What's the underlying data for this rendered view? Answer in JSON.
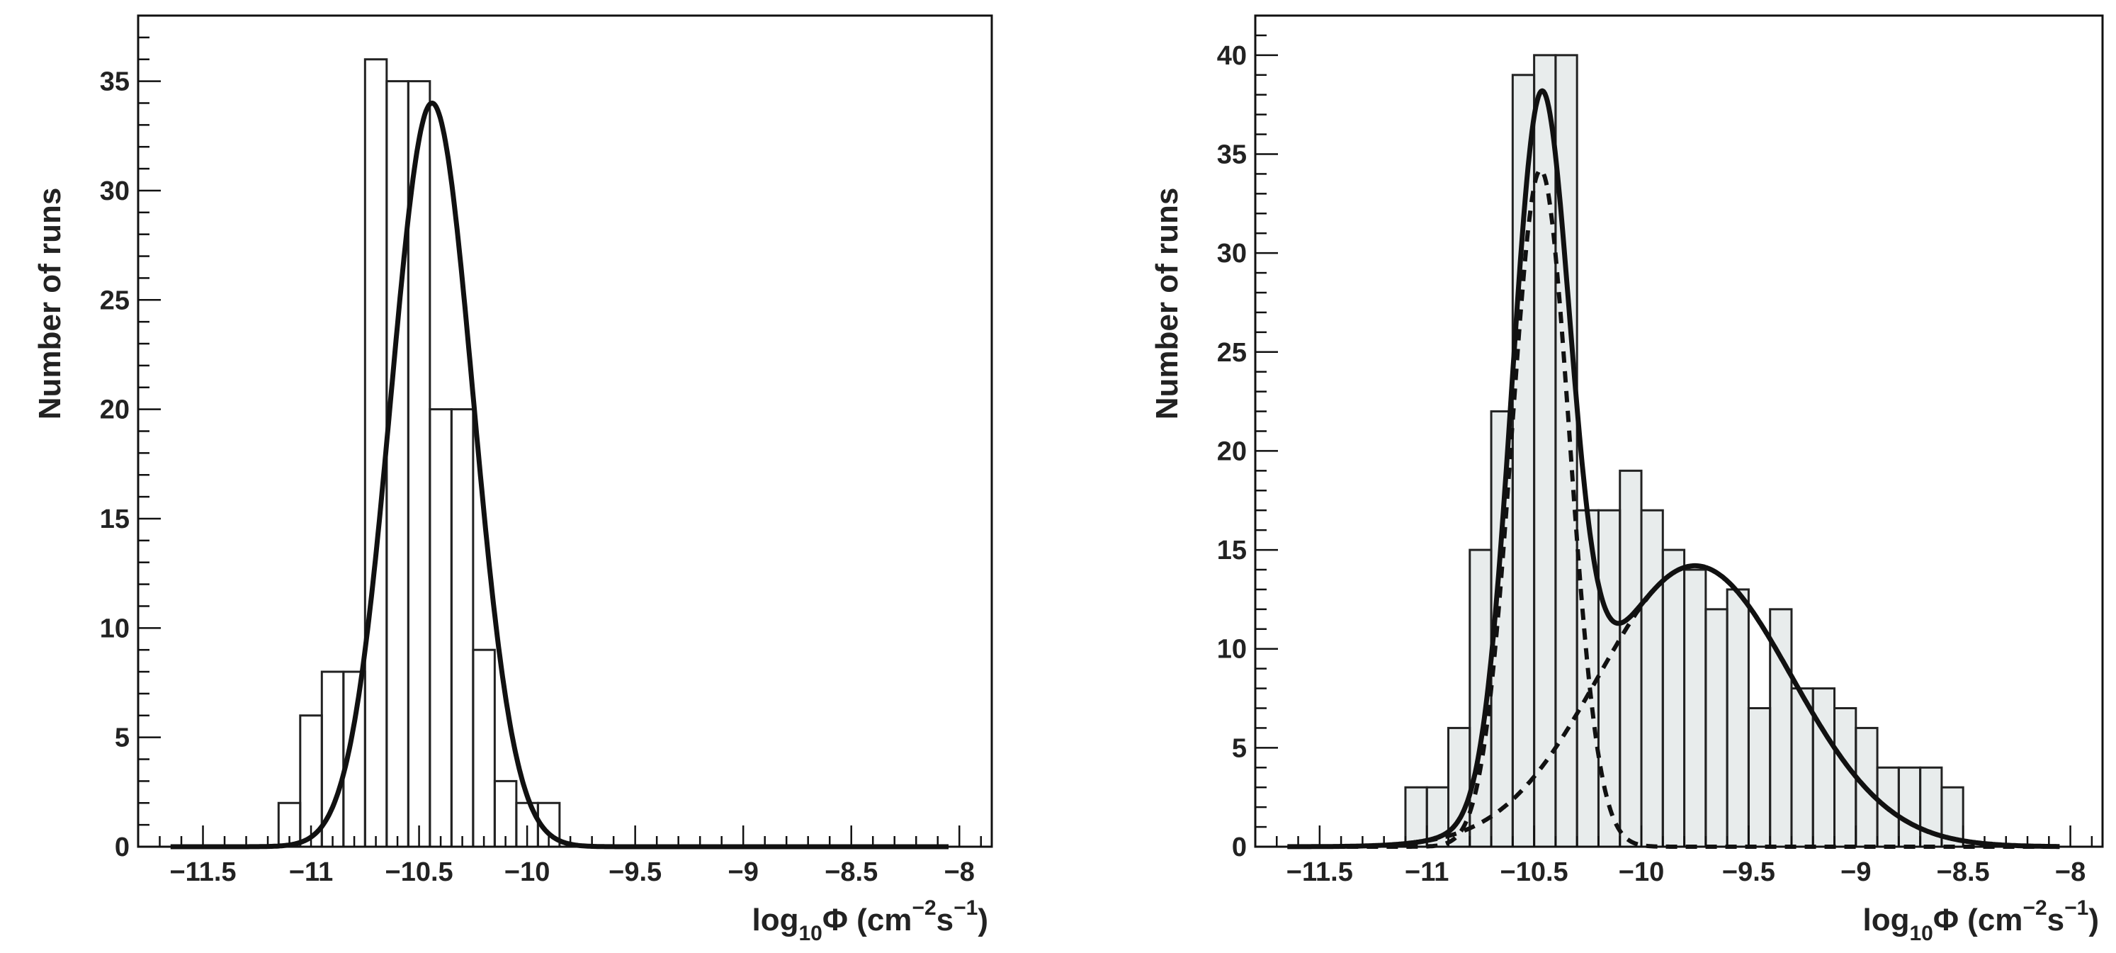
{
  "chart_data": [
    {
      "type": "bar",
      "subtype": "histogram",
      "title": "",
      "xlabel": {
        "main": "log",
        "sub": "10",
        "symbol": "Φ",
        "unit": "(cm",
        "exp1": "−2",
        "mid": "s",
        "exp2": "−1",
        "close": ")"
      },
      "ylabel": "Number of runs",
      "xlim": [
        -11.8,
        -7.85
      ],
      "ylim": [
        0,
        38
      ],
      "grid": false,
      "x_ticks": [
        -11.5,
        -11,
        -10.5,
        -10,
        -9.5,
        -9,
        -8.5,
        -8
      ],
      "x_tick_labels": [
        "−11.5",
        "−11",
        "−10.5",
        "−10",
        "−9.5",
        "−9",
        "−8.5",
        "−8"
      ],
      "y_ticks": [
        0,
        5,
        10,
        15,
        20,
        25,
        30,
        35
      ],
      "y_tick_labels": [
        "0",
        "5",
        "10",
        "15",
        "20",
        "25",
        "30",
        "35"
      ],
      "bin_edges": [
        -11.8,
        -11.15,
        -11.05,
        -10.95,
        -10.85,
        -10.75,
        -10.65,
        -10.55,
        -10.45,
        -10.35,
        -10.25,
        -10.15,
        -10.05,
        -9.95,
        -9.85,
        -9.75,
        -7.85
      ],
      "counts": [
        0,
        2,
        6,
        8,
        8,
        36,
        35,
        35,
        20,
        20,
        9,
        3,
        2,
        2,
        0,
        0
      ],
      "fit_curves": [
        {
          "name": "",
          "style": "solid",
          "model": "gaussian",
          "amplitude": 34,
          "mean": -10.44,
          "sigma": 0.19
        }
      ],
      "filled": false
    },
    {
      "type": "bar",
      "subtype": "histogram",
      "title": "",
      "xlabel": {
        "main": "log",
        "sub": "10",
        "symbol": "Φ",
        "unit": "(cm",
        "exp1": "−2",
        "mid": "s",
        "exp2": "−1",
        "close": ")"
      },
      "ylabel": "Number of runs",
      "xlim": [
        -11.8,
        -7.85
      ],
      "ylim": [
        0,
        42
      ],
      "grid": false,
      "x_ticks": [
        -11.5,
        -11,
        -10.5,
        -10,
        -9.5,
        -9,
        -8.5,
        -8
      ],
      "x_tick_labels": [
        "−11.5",
        "−11",
        "−10.5",
        "−10",
        "−9.5",
        "−9",
        "−8.5",
        "−8"
      ],
      "y_ticks": [
        0,
        5,
        10,
        15,
        20,
        25,
        30,
        35,
        40
      ],
      "y_tick_labels": [
        "0",
        "5",
        "10",
        "15",
        "20",
        "25",
        "30",
        "35",
        "40"
      ],
      "bin_edges": [
        -11.8,
        -11.1,
        -11.0,
        -10.9,
        -10.8,
        -10.7,
        -10.6,
        -10.5,
        -10.4,
        -10.3,
        -10.2,
        -10.1,
        -10.0,
        -9.9,
        -9.8,
        -9.7,
        -9.6,
        -9.5,
        -9.4,
        -9.3,
        -9.2,
        -9.1,
        -9.0,
        -8.9,
        -8.8,
        -8.7,
        -8.6,
        -8.5,
        -7.85
      ],
      "counts": [
        0,
        3,
        3,
        6,
        15,
        22,
        39,
        40,
        40,
        17,
        17,
        19,
        17,
        15,
        14,
        12,
        13,
        7,
        12,
        8,
        8,
        7,
        6,
        4,
        4,
        4,
        3,
        0
      ],
      "fit_curves": [
        {
          "name": "",
          "style": "solid",
          "model": "sum"
        },
        {
          "name": "",
          "style": "dashed",
          "model": "gaussian",
          "amplitude": 34.2,
          "mean": -10.47,
          "sigma": 0.135
        },
        {
          "name": "",
          "style": "dashed",
          "model": "gaussian",
          "amplitude": 14.2,
          "mean": -9.75,
          "sigma": 0.45
        }
      ],
      "filled": true,
      "fill_color": "#e8ecec"
    }
  ]
}
